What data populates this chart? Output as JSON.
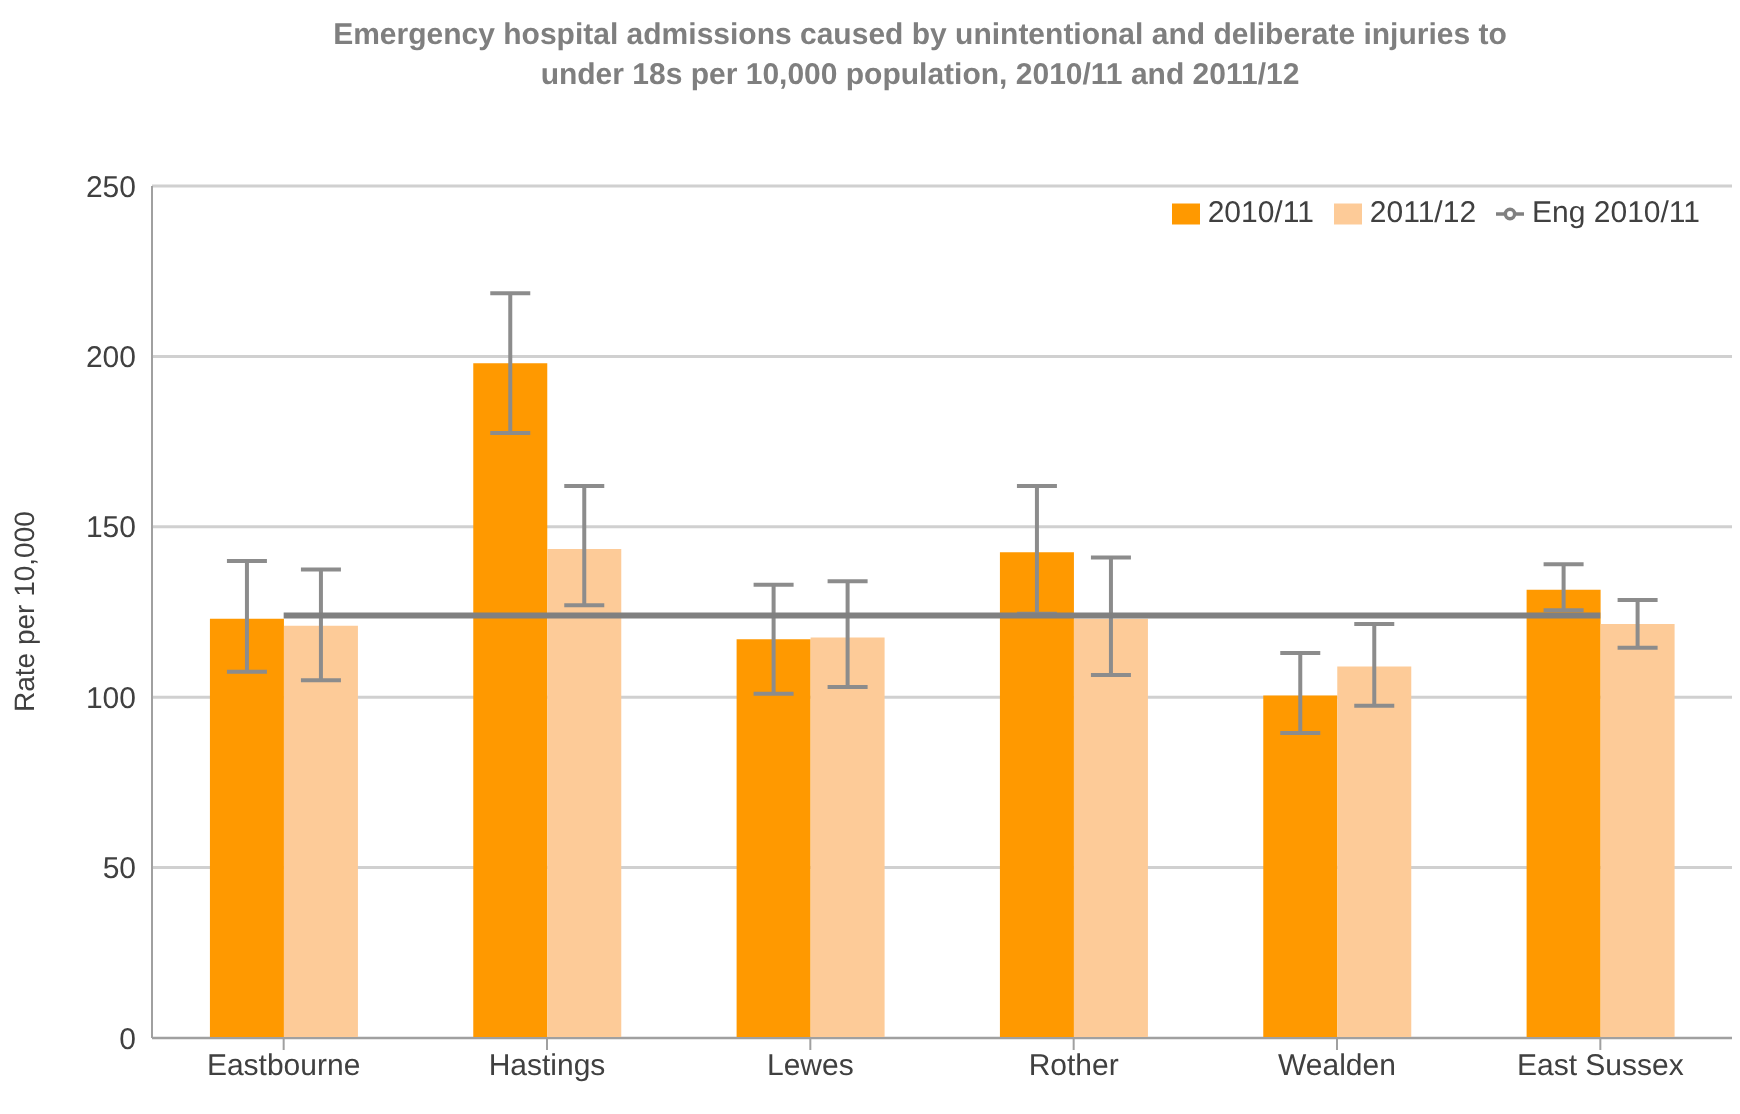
{
  "chart_data": {
    "type": "bar",
    "title": "Emergency hospital admissions caused by unintentional and deliberate injuries to under 18s per 10,000 population, 2010/11 and 2011/12",
    "ylabel": "Rate per 10,000",
    "categories": [
      "Eastbourne",
      "Hastings",
      "Lewes",
      "Rother",
      "Wealden",
      "East Sussex"
    ],
    "series": [
      {
        "name": "2010/11",
        "color": "#ff9900",
        "values": [
          123,
          198,
          117,
          142.5,
          100.5,
          131.5
        ],
        "errors": [
          [
            107.5,
            140
          ],
          [
            177.5,
            218.5
          ],
          [
            101,
            133
          ],
          [
            124.5,
            162
          ],
          [
            89.5,
            113
          ],
          [
            125.5,
            139
          ]
        ]
      },
      {
        "name": "2011/12",
        "color": "#fdcb98",
        "values": [
          121,
          143.5,
          117.5,
          123,
          109,
          121.5
        ],
        "errors": [
          [
            105,
            137.5
          ],
          [
            127,
            162
          ],
          [
            103,
            134
          ],
          [
            106.5,
            141
          ],
          [
            97.5,
            121.5
          ],
          [
            114.5,
            128.5
          ]
        ]
      },
      {
        "name": "Eng 2010/11",
        "type": "line",
        "color": "#808080",
        "values": [
          124,
          124,
          124,
          124,
          124,
          124
        ],
        "marker": "none"
      }
    ],
    "ylim": [
      0,
      250
    ],
    "yticks": [
      0,
      50,
      100,
      150,
      200,
      250
    ],
    "grid": "y",
    "legend": "top right"
  }
}
